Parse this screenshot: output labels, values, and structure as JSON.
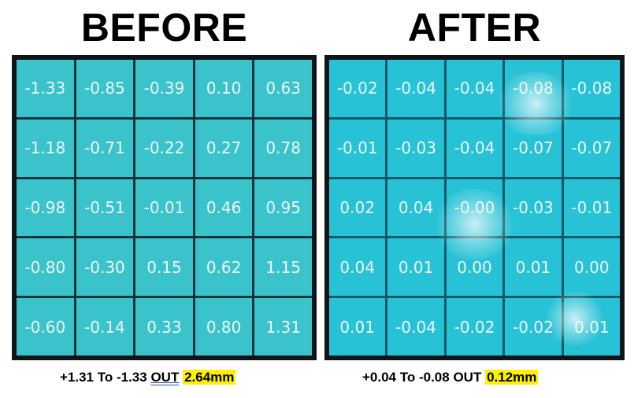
{
  "before": {
    "title": "BEFORE",
    "grid": [
      [
        "-1.33",
        "-0.85",
        "-0.39",
        "0.10",
        "0.63"
      ],
      [
        "-1.18",
        "-0.71",
        "-0.22",
        "0.27",
        "0.78"
      ],
      [
        "-0.98",
        "-0.51",
        "-0.01",
        "0.46",
        "0.95"
      ],
      [
        "-0.80",
        "-0.30",
        "0.15",
        "0.62",
        "1.15"
      ],
      [
        "-0.60",
        "-0.14",
        "0.33",
        "0.80",
        "1.31"
      ]
    ],
    "caption": {
      "range": "+1.31 To -1.33",
      "out_label": "OUT",
      "value": "2.64mm"
    }
  },
  "after": {
    "title": "AFTER",
    "grid": [
      [
        "-0.02",
        "-0.04",
        "-0.04",
        "-0.08",
        "-0.08"
      ],
      [
        "-0.01",
        "-0.03",
        "-0.04",
        "-0.07",
        "-0.07"
      ],
      [
        "0.02",
        "0.04",
        "-0.00",
        "-0.03",
        "-0.01"
      ],
      [
        "0.04",
        "0.01",
        "0.00",
        "0.01",
        "0.00"
      ],
      [
        "0.01",
        "-0.04",
        "-0.02",
        "-0.02",
        "0.01"
      ]
    ],
    "caption": {
      "range": "+0.04 To -0.08",
      "out_label": "OUT",
      "value": "0.12mm"
    }
  },
  "colors": {
    "before_cell": "#3bc3cc",
    "after_cell": "#27c2d6",
    "highlight": "#fff000",
    "text_on_cell": "#ecfafc"
  }
}
